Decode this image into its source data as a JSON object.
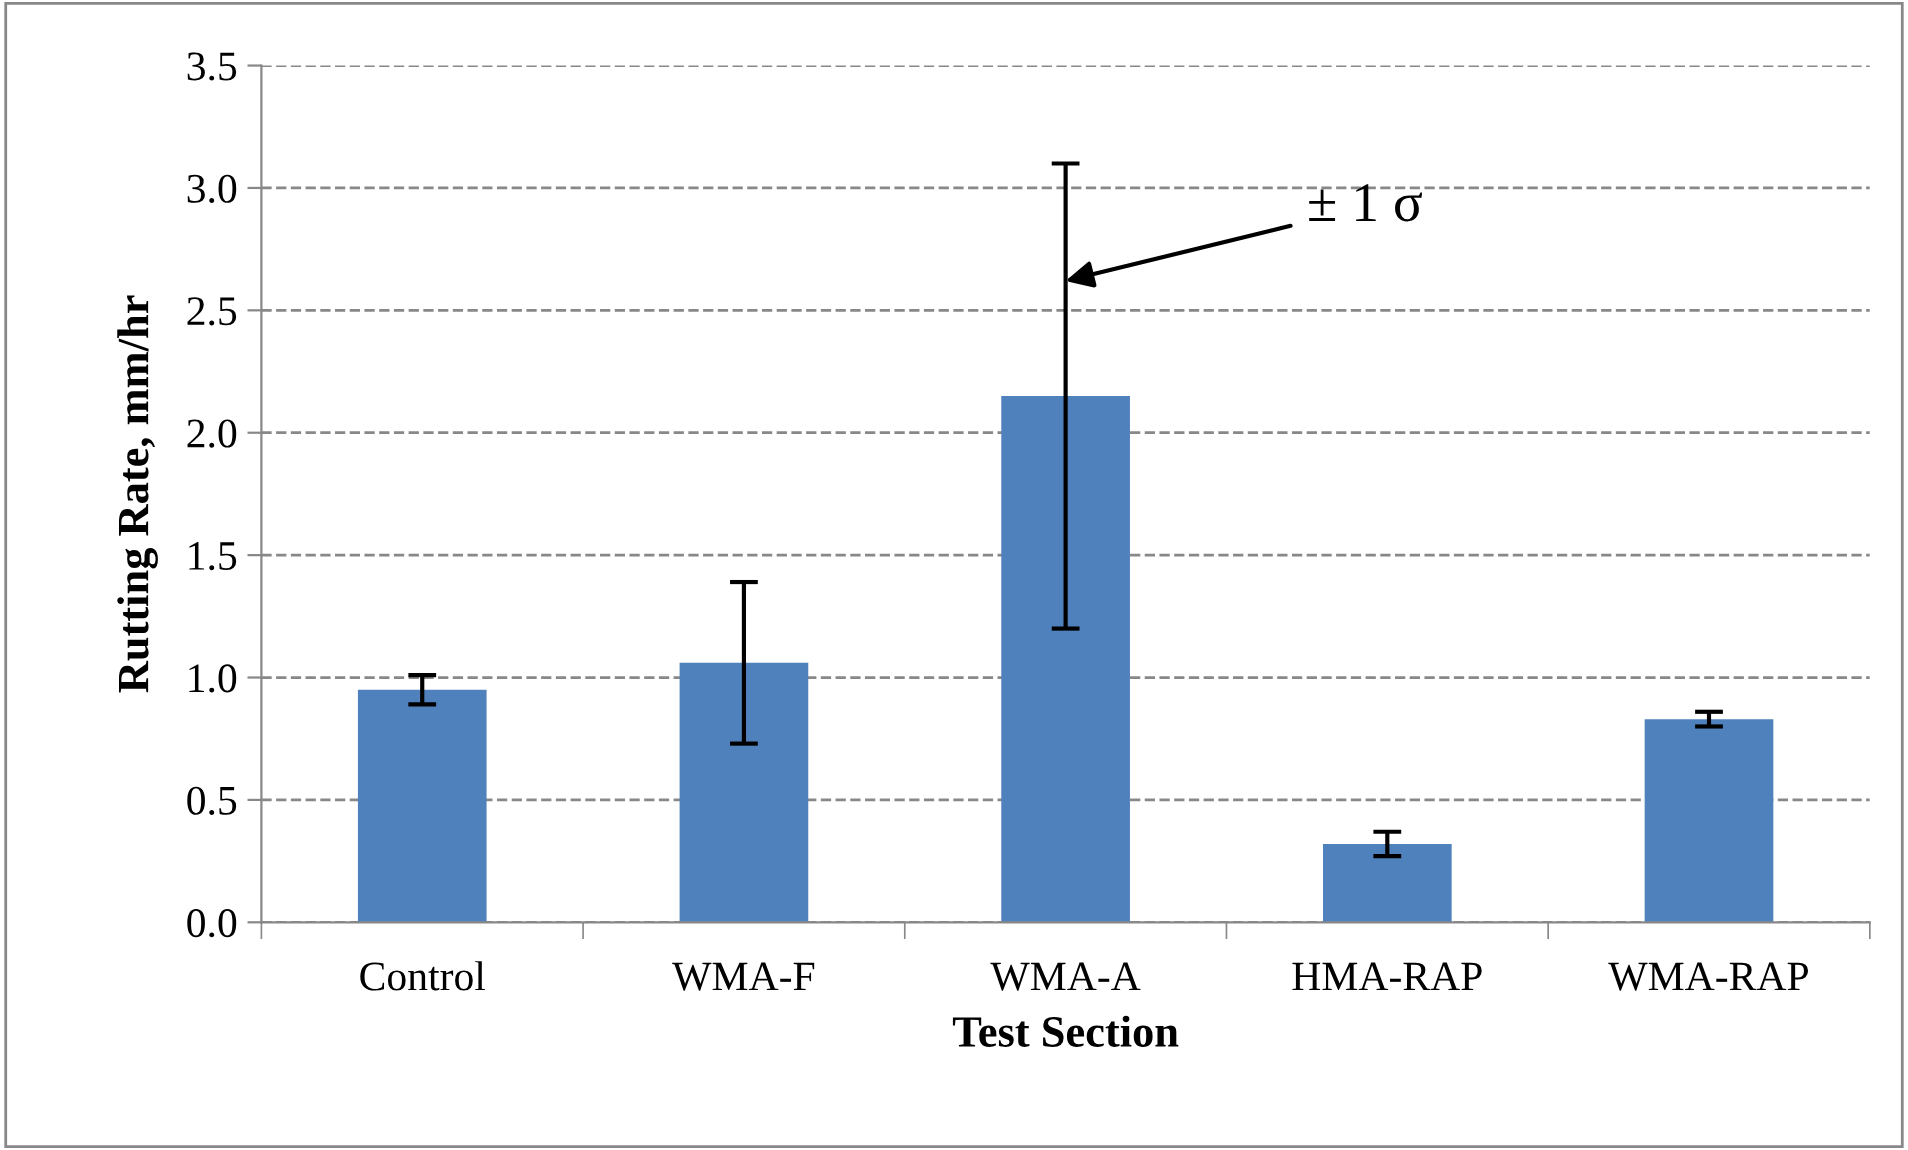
{
  "chart_data": {
    "type": "bar",
    "xlabel": "Test Section",
    "ylabel": "Rutting Rate, mm/hr",
    "categories": [
      "Control",
      "WMA-F",
      "WMA-A",
      "HMA-RAP",
      "WMA-RAP"
    ],
    "values": [
      0.95,
      1.06,
      2.15,
      0.32,
      0.83
    ],
    "errors": [
      0.06,
      0.33,
      0.95,
      0.05,
      0.03
    ],
    "color": "#4f81bd",
    "ylim": [
      0,
      3.5
    ],
    "yticks": [
      {
        "value": 0,
        "label": "0.0"
      },
      {
        "value": 0.5,
        "label": "0.5"
      },
      {
        "value": 1,
        "label": "1.0"
      },
      {
        "value": 1.5,
        "label": "1.5"
      },
      {
        "value": 2,
        "label": "2.0"
      },
      {
        "value": 2.5,
        "label": "2.5"
      },
      {
        "value": 3,
        "label": "3.0"
      },
      {
        "value": 3.5,
        "label": "3.5"
      }
    ],
    "grid": "y",
    "annotations": [
      {
        "text": "± 1 σ",
        "x": "WMA-A",
        "y": 2.62
      }
    ]
  }
}
